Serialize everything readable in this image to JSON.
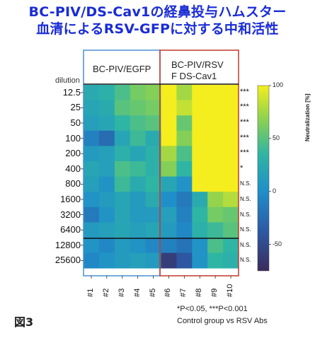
{
  "title_line1": "BC-PIV/DS-Cav1の経鼻投与ハムスター",
  "title_line2": "血清によるRSV-GFPに対する中和活性",
  "group1_label": "BC-PIV/EGFP",
  "group2_label_line1": "BC-PIV/RSV",
  "group2_label_line2": "F DS-Cav1",
  "dilution_header": "dilution",
  "figure_label": "図3",
  "footnote_line1": "*P<0.05, ***P<0.001",
  "footnote_line2": "Control group vs RSV Abs",
  "colors": {
    "title": "#1a2cd6",
    "group1_box": "#4a8fd0",
    "group2_box": "#c0392b"
  },
  "chart_data": {
    "type": "heatmap",
    "x_title": "",
    "y_title": "dilution",
    "columns": [
      "#1",
      "#2",
      "#3",
      "#4",
      "#5",
      "#6",
      "#7",
      "#8",
      "#9",
      "#10"
    ],
    "rows": [
      "12.5",
      "25",
      "50",
      "100",
      "200",
      "400",
      "800",
      "1600",
      "3200",
      "6400",
      "12800",
      "25600"
    ],
    "significance": [
      "***",
      "***",
      "***",
      "***",
      "***",
      "*",
      "N.S.",
      "N.S.",
      "N.S.",
      "N.S.",
      "N.S.",
      "N.S."
    ],
    "colorbar": {
      "label": "Neutralization [%]",
      "min": -75,
      "max": 100,
      "ticks": [
        100,
        50,
        0,
        -50
      ]
    },
    "values": [
      [
        25,
        30,
        45,
        60,
        65,
        100,
        75,
        100,
        100,
        100
      ],
      [
        20,
        25,
        50,
        55,
        60,
        100,
        85,
        100,
        100,
        100
      ],
      [
        15,
        20,
        35,
        45,
        50,
        100,
        55,
        100,
        100,
        100
      ],
      [
        -10,
        -25,
        20,
        40,
        25,
        100,
        65,
        100,
        100,
        100
      ],
      [
        10,
        15,
        30,
        20,
        30,
        75,
        45,
        100,
        100,
        100
      ],
      [
        20,
        15,
        45,
        40,
        30,
        65,
        35,
        100,
        100,
        100
      ],
      [
        15,
        5,
        40,
        25,
        35,
        20,
        5,
        100,
        100,
        100
      ],
      [
        5,
        10,
        20,
        10,
        25,
        0,
        -15,
        25,
        70,
        80
      ],
      [
        -15,
        5,
        20,
        10,
        10,
        15,
        -10,
        35,
        60,
        55
      ],
      [
        10,
        15,
        20,
        15,
        20,
        10,
        -5,
        30,
        40,
        50
      ],
      [
        5,
        -5,
        10,
        5,
        -5,
        -10,
        -20,
        5,
        45,
        35
      ],
      [
        -5,
        5,
        10,
        15,
        10,
        -60,
        -40,
        5,
        35,
        30
      ]
    ]
  }
}
